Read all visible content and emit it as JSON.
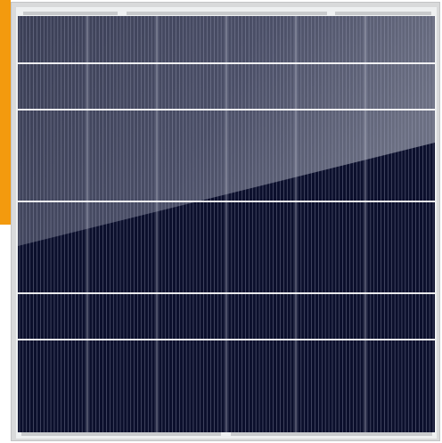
{
  "image": {
    "subject": "solar-panel",
    "colors": {
      "accent": "#f39a0e",
      "frame": "#d9dadb",
      "frame_edge": "#c3c4c6",
      "cell_dark": "#0b0f2c",
      "cell_light_top": "#3a3e55",
      "cell_light_bottom": "#5b5f72",
      "finger": "#a6aac2",
      "bus_line": "#ffffff",
      "glare": "#ffffff"
    },
    "grid": {
      "columns": 6,
      "rows": 6,
      "fingers_per_column": 20
    }
  }
}
